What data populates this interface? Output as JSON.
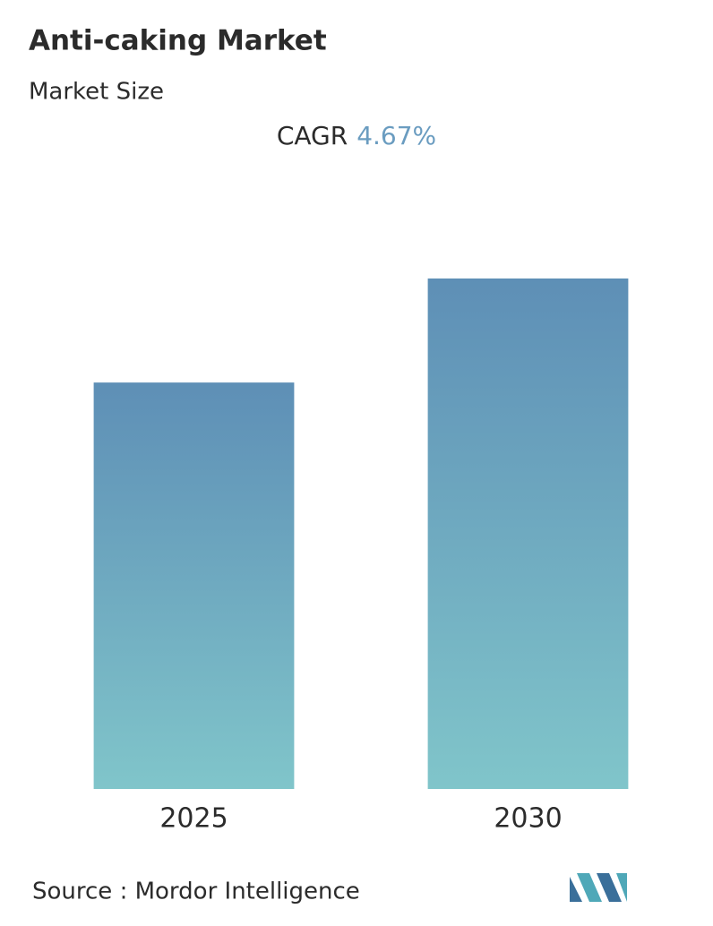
{
  "chart_data": {
    "type": "bar",
    "title": "Anti-caking Market",
    "subtitle": "Market Size",
    "cagr_label": "CAGR",
    "cagr_value": "4.67%",
    "categories": [
      "2025",
      "2030"
    ],
    "values": [
      100,
      125.6
    ],
    "ylim": [
      0,
      130
    ],
    "color_top": "#5e8fb6",
    "color_bottom": "#80c5ca",
    "source": "Source :  Mordor Intelligence"
  }
}
